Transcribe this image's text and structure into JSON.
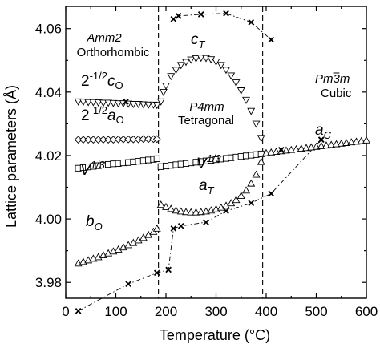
{
  "chart_data": {
    "type": "scatter",
    "xlabel": "Temperature (°C)",
    "ylabel": "Lattice parameters (Å)",
    "xlim": [
      0,
      600
    ],
    "ylim": [
      3.975,
      4.067
    ],
    "xticks": [
      0,
      100,
      200,
      300,
      400,
      500,
      600
    ],
    "yticks": [
      3.98,
      4.0,
      4.02,
      4.04,
      4.06
    ],
    "ytick_labels": [
      "3.98",
      "4.00",
      "4.02",
      "4.04",
      "4.06"
    ],
    "phase_boundaries": [
      185,
      393
    ],
    "phases": [
      {
        "symmetry": "Amm2",
        "name": "Orthorhombic"
      },
      {
        "symmetry": "P4mm",
        "name": "Tetragonal"
      },
      {
        "symmetry": "Pm3m",
        "name": "Cubic"
      }
    ],
    "series_labels": {
      "c_o": "2-1/2cO",
      "a_o": "2-1/2aO",
      "v_low": "V1/3",
      "v_high": "V1/3",
      "b_o": "bO",
      "c_t": "cT",
      "a_t": "aT",
      "a_c": "aC"
    },
    "series": [
      {
        "id": "c_o",
        "marker": "triangle-down",
        "x": [
          25,
          35,
          45,
          55,
          65,
          75,
          85,
          95,
          105,
          115,
          125,
          135,
          145,
          155,
          165,
          175,
          182
        ],
        "y": [
          4.037,
          4.0369,
          4.0368,
          4.0368,
          4.0367,
          4.0366,
          4.0366,
          4.0365,
          4.0364,
          4.0364,
          4.0363,
          4.0362,
          4.0362,
          4.0361,
          4.036,
          4.036,
          4.0359
        ]
      },
      {
        "id": "a_o",
        "marker": "diamond",
        "x": [
          25,
          35,
          45,
          55,
          65,
          75,
          85,
          95,
          105,
          115,
          125,
          135,
          145,
          155,
          165,
          175,
          182
        ],
        "y": [
          4.025,
          4.025,
          4.025,
          4.025,
          4.025,
          4.025,
          4.025,
          4.025,
          4.0251,
          4.0251,
          4.0251,
          4.0251,
          4.0251,
          4.0252,
          4.0252,
          4.0252,
          4.0252
        ]
      },
      {
        "id": "v",
        "marker": "square",
        "x": [
          25,
          35,
          45,
          55,
          65,
          75,
          85,
          95,
          105,
          115,
          125,
          135,
          145,
          155,
          165,
          175,
          182,
          190,
          200,
          210,
          220,
          230,
          240,
          250,
          260,
          270,
          280,
          290,
          300,
          310,
          320,
          330,
          340,
          350,
          360,
          370,
          380,
          390
        ],
        "y": [
          4.016,
          4.0162,
          4.0164,
          4.0166,
          4.0168,
          4.017,
          4.0172,
          4.0174,
          4.0175,
          4.0177,
          4.0178,
          4.018,
          4.0182,
          4.0184,
          4.0186,
          4.0188,
          4.019,
          4.0165,
          4.0167,
          4.0169,
          4.0171,
          4.0173,
          4.0175,
          4.0177,
          4.0179,
          4.0181,
          4.0183,
          4.0185,
          4.0187,
          4.0189,
          4.0191,
          4.0193,
          4.0195,
          4.0197,
          4.0199,
          4.0201,
          4.0203,
          4.0205
        ]
      },
      {
        "id": "b_o",
        "marker": "triangle-up",
        "x": [
          25,
          35,
          45,
          55,
          65,
          75,
          85,
          95,
          105,
          115,
          125,
          135,
          145,
          155,
          165,
          175,
          182
        ],
        "y": [
          3.986,
          3.9865,
          3.987,
          3.9875,
          3.988,
          3.9886,
          3.9892,
          3.9898,
          3.9904,
          3.9911,
          3.9918,
          3.9925,
          3.9933,
          3.9941,
          3.995,
          3.996,
          3.997
        ]
      },
      {
        "id": "c_t",
        "marker": "triangle-down",
        "x": [
          190,
          195,
          200,
          210,
          220,
          230,
          240,
          250,
          260,
          270,
          280,
          290,
          300,
          310,
          320,
          330,
          340,
          350,
          360,
          370,
          380,
          390
        ],
        "y": [
          4.037,
          4.04,
          4.042,
          4.045,
          4.047,
          4.0485,
          4.0495,
          4.0502,
          4.0506,
          4.0508,
          4.0507,
          4.0503,
          4.0496,
          4.0485,
          4.047,
          4.0452,
          4.043,
          4.0405,
          4.0375,
          4.034,
          4.03,
          4.0255
        ]
      },
      {
        "id": "a_t",
        "marker": "triangle-up",
        "x": [
          190,
          200,
          210,
          220,
          230,
          240,
          250,
          260,
          270,
          280,
          290,
          300,
          310,
          320,
          330,
          340,
          350,
          360,
          370,
          380,
          390
        ],
        "y": [
          4.0045,
          4.0038,
          4.0032,
          4.0027,
          4.0024,
          4.0022,
          4.0021,
          4.0021,
          4.0022,
          4.0024,
          4.0027,
          4.0031,
          4.0036,
          4.0042,
          4.005,
          4.006,
          4.0073,
          4.009,
          4.0112,
          4.014,
          4.018
        ]
      },
      {
        "id": "a_c",
        "marker": "triangle-up",
        "x": [
          400,
          410,
          420,
          430,
          440,
          450,
          460,
          470,
          480,
          490,
          500,
          510,
          520,
          530,
          540,
          550,
          560,
          570,
          580,
          590,
          600
        ],
        "y": [
          4.0208,
          4.021,
          4.0212,
          4.0214,
          4.0216,
          4.0218,
          4.022,
          4.0222,
          4.0224,
          4.0226,
          4.0228,
          4.023,
          4.0232,
          4.0234,
          4.0236,
          4.0238,
          4.024,
          4.0242,
          4.0244,
          4.0246,
          4.0248
        ]
      },
      {
        "id": "crosses",
        "marker": "cross",
        "x": [
          25,
          125,
          182,
          205,
          215,
          230,
          280,
          320,
          370,
          410,
          510
        ],
        "y": [
          3.971,
          3.9795,
          3.983,
          3.984,
          3.997,
          3.9978,
          3.999,
          4.0025,
          4.005,
          4.008,
          4.025
        ]
      },
      {
        "id": "crosses_ct",
        "marker": "cross",
        "x": [
          215,
          225,
          270,
          320,
          370,
          410
        ],
        "y": [
          4.063,
          4.064,
          4.0645,
          4.0648,
          4.062,
          4.0565
        ]
      },
      {
        "id": "crosses_ac",
        "marker": "cross",
        "x": [
          430,
          510
        ],
        "y": [
          4.0218,
          4.025
        ]
      },
      {
        "id": "crosses_left",
        "marker": "cross",
        "x": [
          120
        ],
        "y": [
          4.037
        ]
      }
    ]
  }
}
